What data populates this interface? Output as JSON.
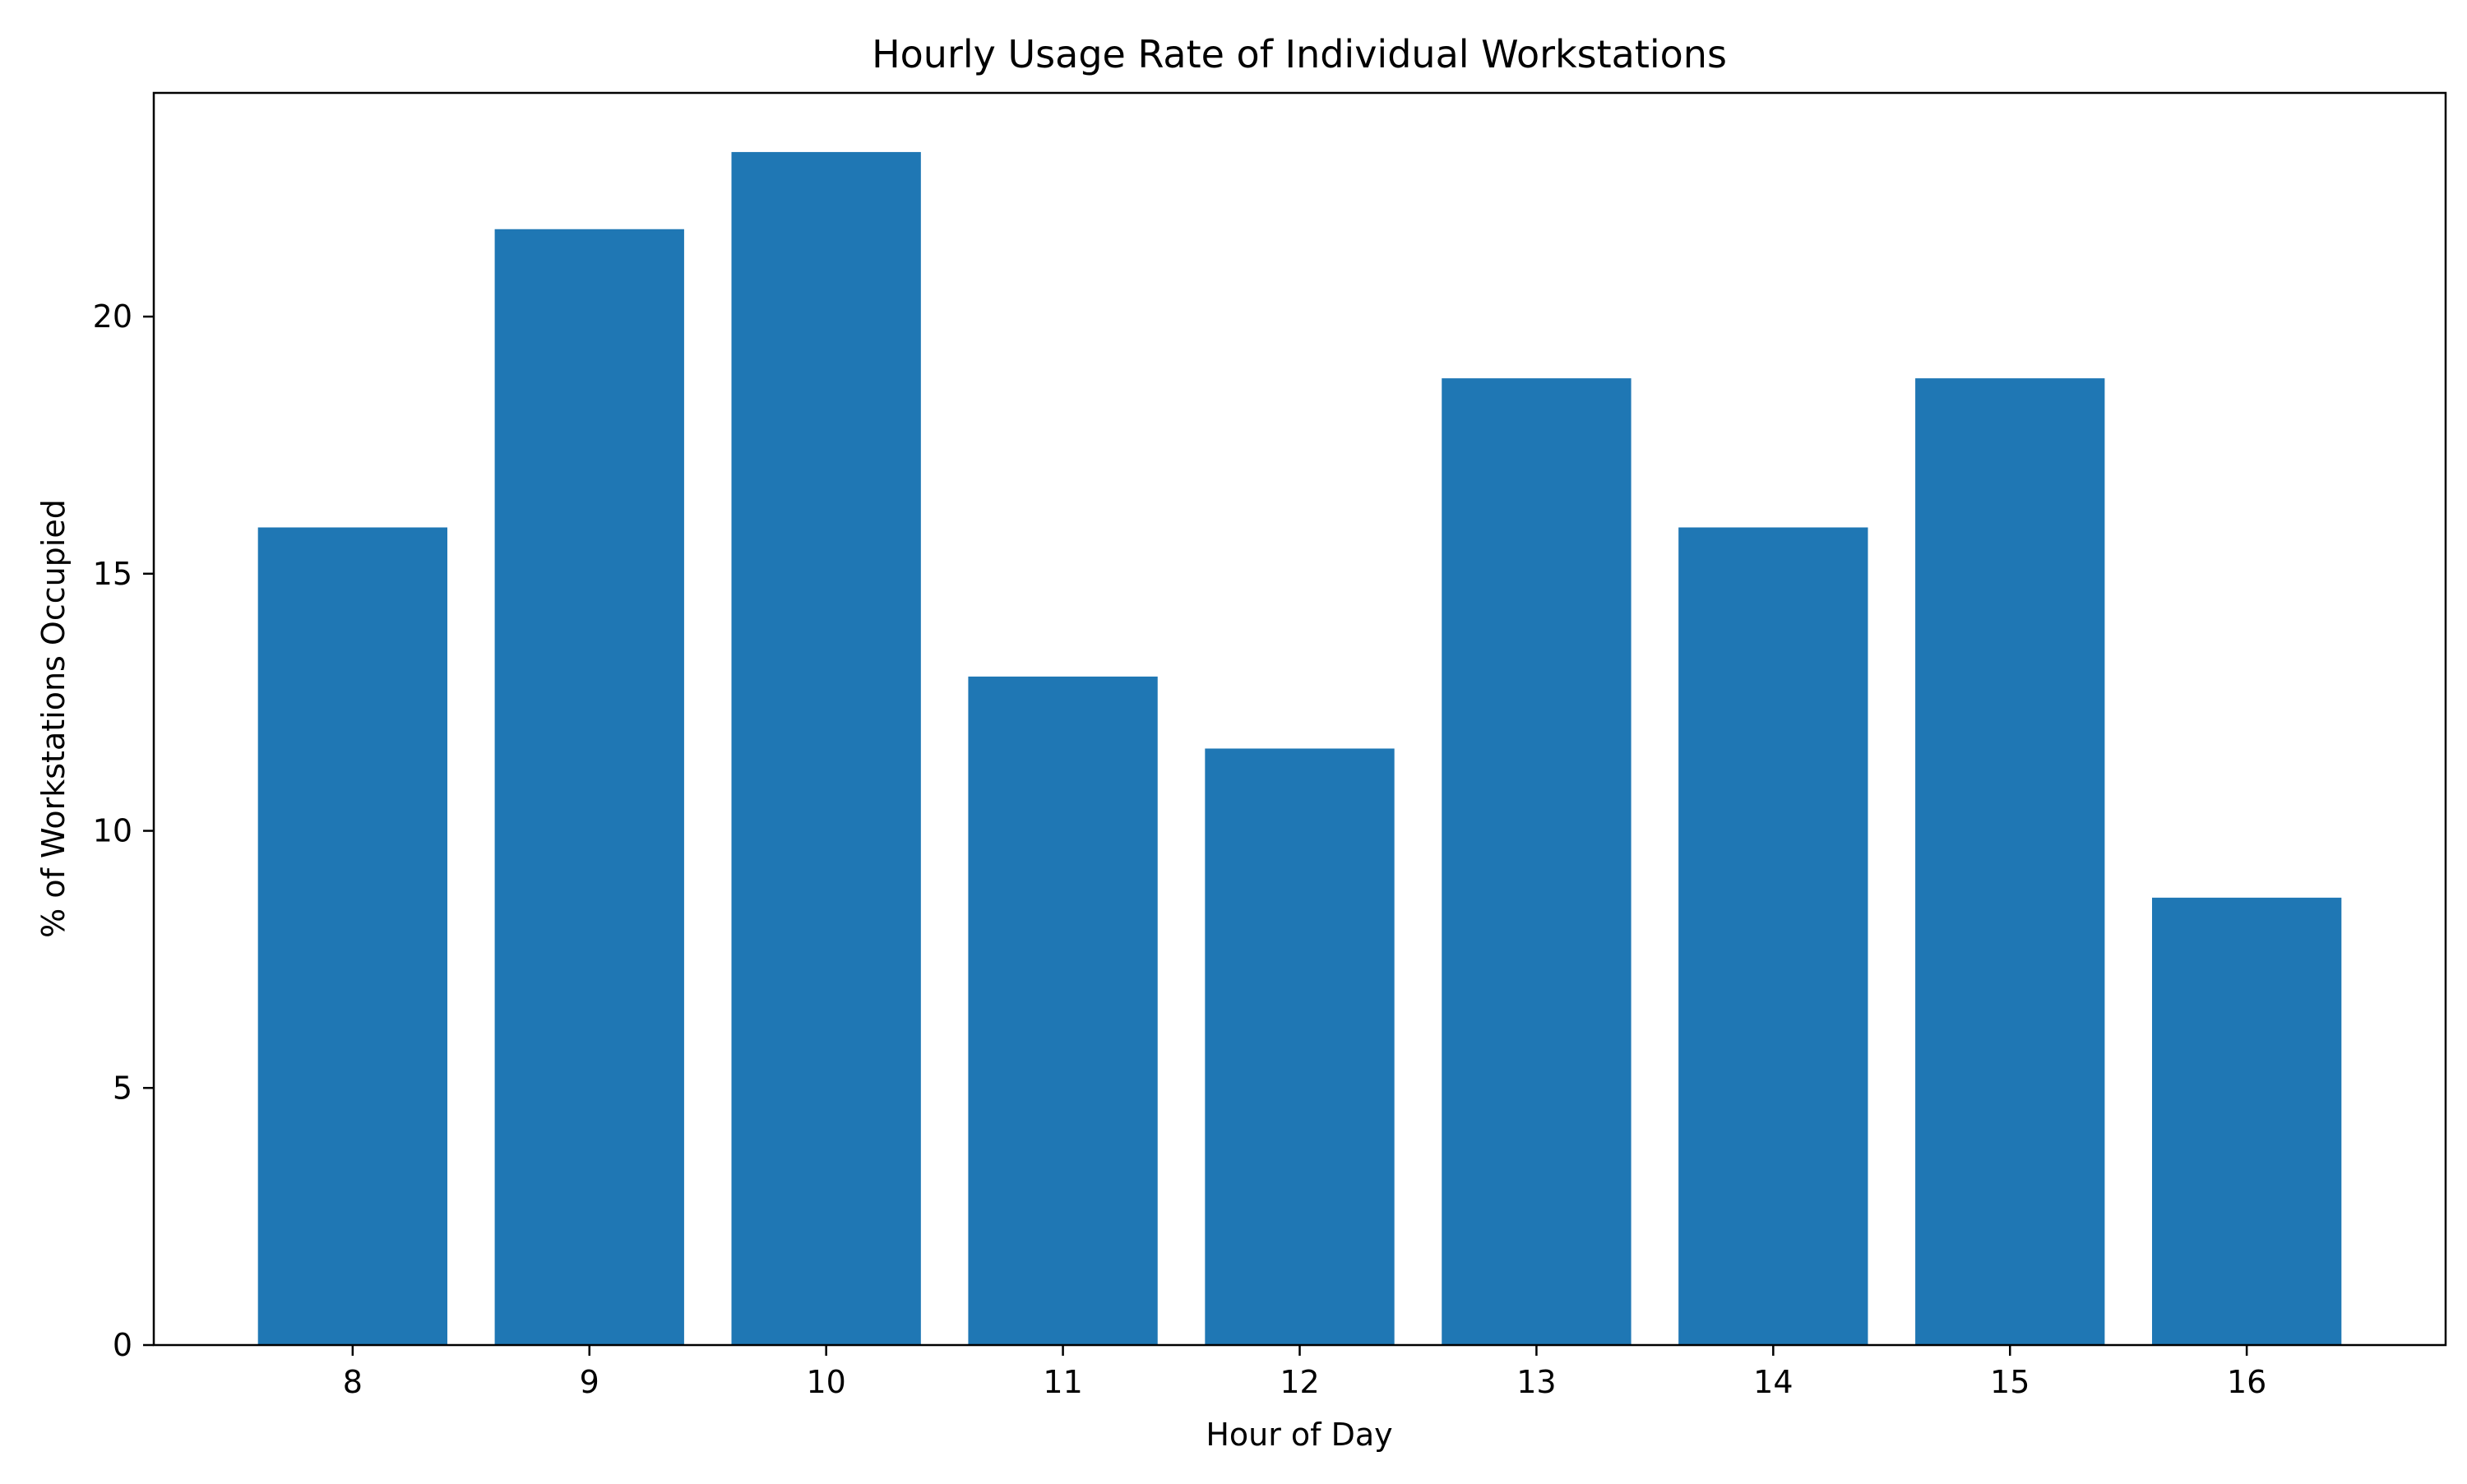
{
  "chart_data": {
    "type": "bar",
    "title": "Hourly Usage Rate of Individual Workstations",
    "xlabel": "Hour of Day",
    "ylabel": "% of Workstations Occupied",
    "categories": [
      "8",
      "9",
      "10",
      "11",
      "12",
      "13",
      "14",
      "15",
      "16"
    ],
    "values": [
      15.9,
      21.7,
      23.2,
      13.0,
      11.6,
      18.8,
      15.9,
      18.8,
      8.7
    ],
    "ylim": [
      0,
      24.35
    ],
    "yticks": [
      "0",
      "5",
      "10",
      "15",
      "20"
    ],
    "ytick_values": [
      0,
      5,
      10,
      15,
      20
    ],
    "bar_color": "#1f77b4",
    "grid": false,
    "legend": "none"
  }
}
